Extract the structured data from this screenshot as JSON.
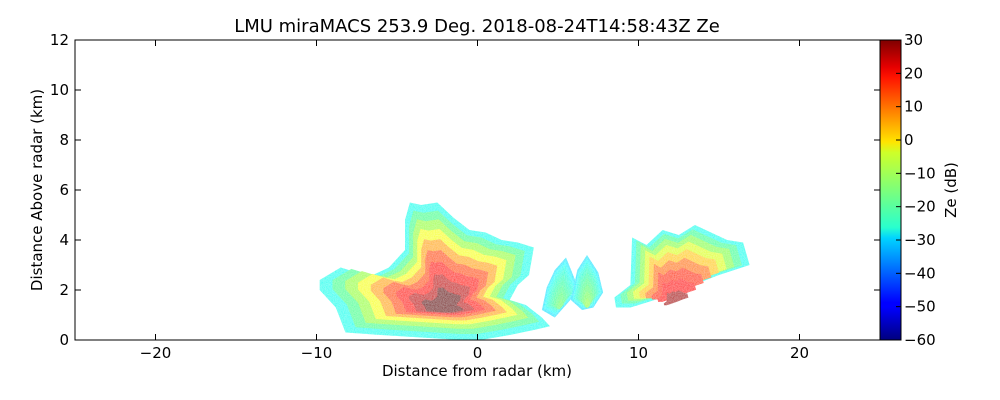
{
  "chart_data": {
    "type": "heatmap",
    "title": "LMU miraMACS 253.9 Deg. 2018-08-24T14:58:43Z  Ze",
    "xlabel": "Distance from radar (km)",
    "ylabel": "Distance Above radar  (km)",
    "xlim": [
      -25,
      25
    ],
    "ylim": [
      0,
      12
    ],
    "xticks": [
      "−20",
      "−10",
      "0",
      "10",
      "20"
    ],
    "xtick_values": [
      -20,
      -10,
      0,
      10,
      20
    ],
    "yticks": [
      "0",
      "2",
      "4",
      "6",
      "8",
      "10",
      "12"
    ],
    "ytick_values": [
      0,
      2,
      4,
      6,
      8,
      10,
      12
    ],
    "colorbar": {
      "label": "Ze (dB)",
      "range": [
        -60,
        30
      ],
      "colormap": "jet",
      "ticks": [
        "30",
        "20",
        "10",
        "0",
        "−10",
        "−20",
        "−30",
        "−40",
        "−50",
        "−60"
      ],
      "tick_values": [
        30,
        20,
        10,
        0,
        -10,
        -20,
        -30,
        -40,
        -50,
        -60
      ]
    },
    "echo_regions": [
      {
        "name": "main-cloud",
        "outline_km": [
          [
            -9.8,
            2.4
          ],
          [
            -8.5,
            2.9
          ],
          [
            -7.5,
            2.7
          ],
          [
            -6.5,
            2.6
          ],
          [
            -5.5,
            2.9
          ],
          [
            -4.5,
            3.6
          ],
          [
            -4.5,
            4.8
          ],
          [
            -4.2,
            5.5
          ],
          [
            -3.5,
            5.4
          ],
          [
            -2.5,
            5.5
          ],
          [
            -1.5,
            4.9
          ],
          [
            -0.5,
            4.4
          ],
          [
            0.5,
            4.3
          ],
          [
            1.5,
            4.0
          ],
          [
            2.5,
            3.9
          ],
          [
            3.5,
            3.7
          ],
          [
            3.2,
            2.6
          ],
          [
            2.5,
            2.2
          ],
          [
            2.0,
            1.6
          ],
          [
            3.0,
            1.4
          ],
          [
            4.0,
            0.9
          ],
          [
            4.5,
            0.55
          ],
          [
            3.5,
            0.4
          ],
          [
            2.0,
            0.2
          ],
          [
            0.2,
            0.0
          ],
          [
            -1.0,
            0.0
          ],
          [
            -3.5,
            0.1
          ],
          [
            -6.0,
            0.2
          ],
          [
            -8.2,
            0.3
          ],
          [
            -8.8,
            1.3
          ],
          [
            -9.8,
            2.0
          ]
        ],
        "peak_dB": 30,
        "edge_dB": -25
      },
      {
        "name": "mid-fragment",
        "outline_km": [
          [
            4.0,
            1.2
          ],
          [
            4.3,
            2.1
          ],
          [
            4.8,
            2.8
          ],
          [
            5.5,
            3.3
          ],
          [
            6.0,
            2.5
          ],
          [
            6.3,
            2.0
          ],
          [
            5.5,
            1.4
          ],
          [
            4.8,
            0.9
          ]
        ],
        "peak_dB": -15,
        "edge_dB": -28
      },
      {
        "name": "mid-fragment-2",
        "outline_km": [
          [
            5.8,
            1.6
          ],
          [
            6.2,
            2.8
          ],
          [
            6.8,
            3.4
          ],
          [
            7.5,
            2.7
          ],
          [
            7.8,
            1.9
          ],
          [
            7.2,
            1.3
          ],
          [
            6.5,
            1.2
          ]
        ],
        "peak_dB": -12,
        "edge_dB": -28
      },
      {
        "name": "right-cloud",
        "outline_km": [
          [
            8.5,
            1.7
          ],
          [
            9.5,
            2.2
          ],
          [
            9.6,
            4.1
          ],
          [
            10.5,
            3.8
          ],
          [
            11.5,
            4.4
          ],
          [
            12.5,
            4.2
          ],
          [
            13.5,
            4.6
          ],
          [
            14.5,
            4.3
          ],
          [
            15.5,
            4.0
          ],
          [
            16.5,
            3.9
          ],
          [
            16.9,
            3.0
          ],
          [
            15.0,
            2.6
          ],
          [
            13.0,
            2.1
          ],
          [
            11.0,
            1.6
          ],
          [
            9.5,
            1.3
          ],
          [
            8.6,
            1.3
          ]
        ],
        "peak_dB": 25,
        "edge_dB": -25
      }
    ],
    "grid": false,
    "legend": "none"
  }
}
